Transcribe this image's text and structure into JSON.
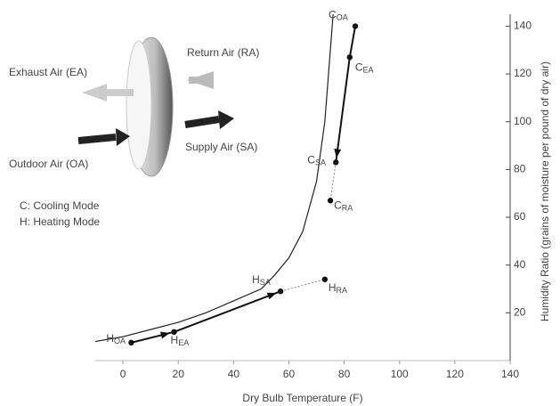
{
  "chart_data": {
    "type": "scatter",
    "x_label": "Dry Bulb Temperature (F)",
    "y_label": "Humidity Ratio (grains of moisture per pound of dry air)",
    "xlim": [
      -10,
      140
    ],
    "xticks": [
      0,
      20,
      40,
      60,
      80,
      100,
      120,
      140
    ],
    "ylim": [
      0,
      145
    ],
    "yticks": [
      20,
      40,
      60,
      80,
      100,
      120,
      140
    ],
    "color": "#111111",
    "points": {
      "x": [
        84,
        82,
        77,
        75,
        3,
        18.5,
        57,
        73
      ],
      "values": [
        140,
        127,
        83,
        67,
        7.5,
        12,
        29,
        34
      ],
      "labels": [
        "C",
        "C",
        "C",
        "C",
        "H",
        "H",
        "H",
        "H"
      ],
      "subscripts": [
        "OA",
        "EA",
        "SA",
        "RA",
        "OA",
        "EA",
        "SA",
        "RA"
      ]
    },
    "curve": {
      "x": [
        -10,
        0,
        10,
        20,
        30,
        40,
        50,
        55,
        60,
        65,
        70,
        73,
        76
      ],
      "values": [
        8,
        10,
        13,
        16,
        20,
        25,
        30,
        36,
        43,
        54,
        75,
        100,
        145
      ]
    },
    "annotations": [
      "Return Air (RA)",
      "Exhaust Air (EA)",
      "Outdoor Air (OA)",
      "Supply Air (SA)",
      "C: Cooling Mode",
      "H: Heating Mode"
    ]
  }
}
